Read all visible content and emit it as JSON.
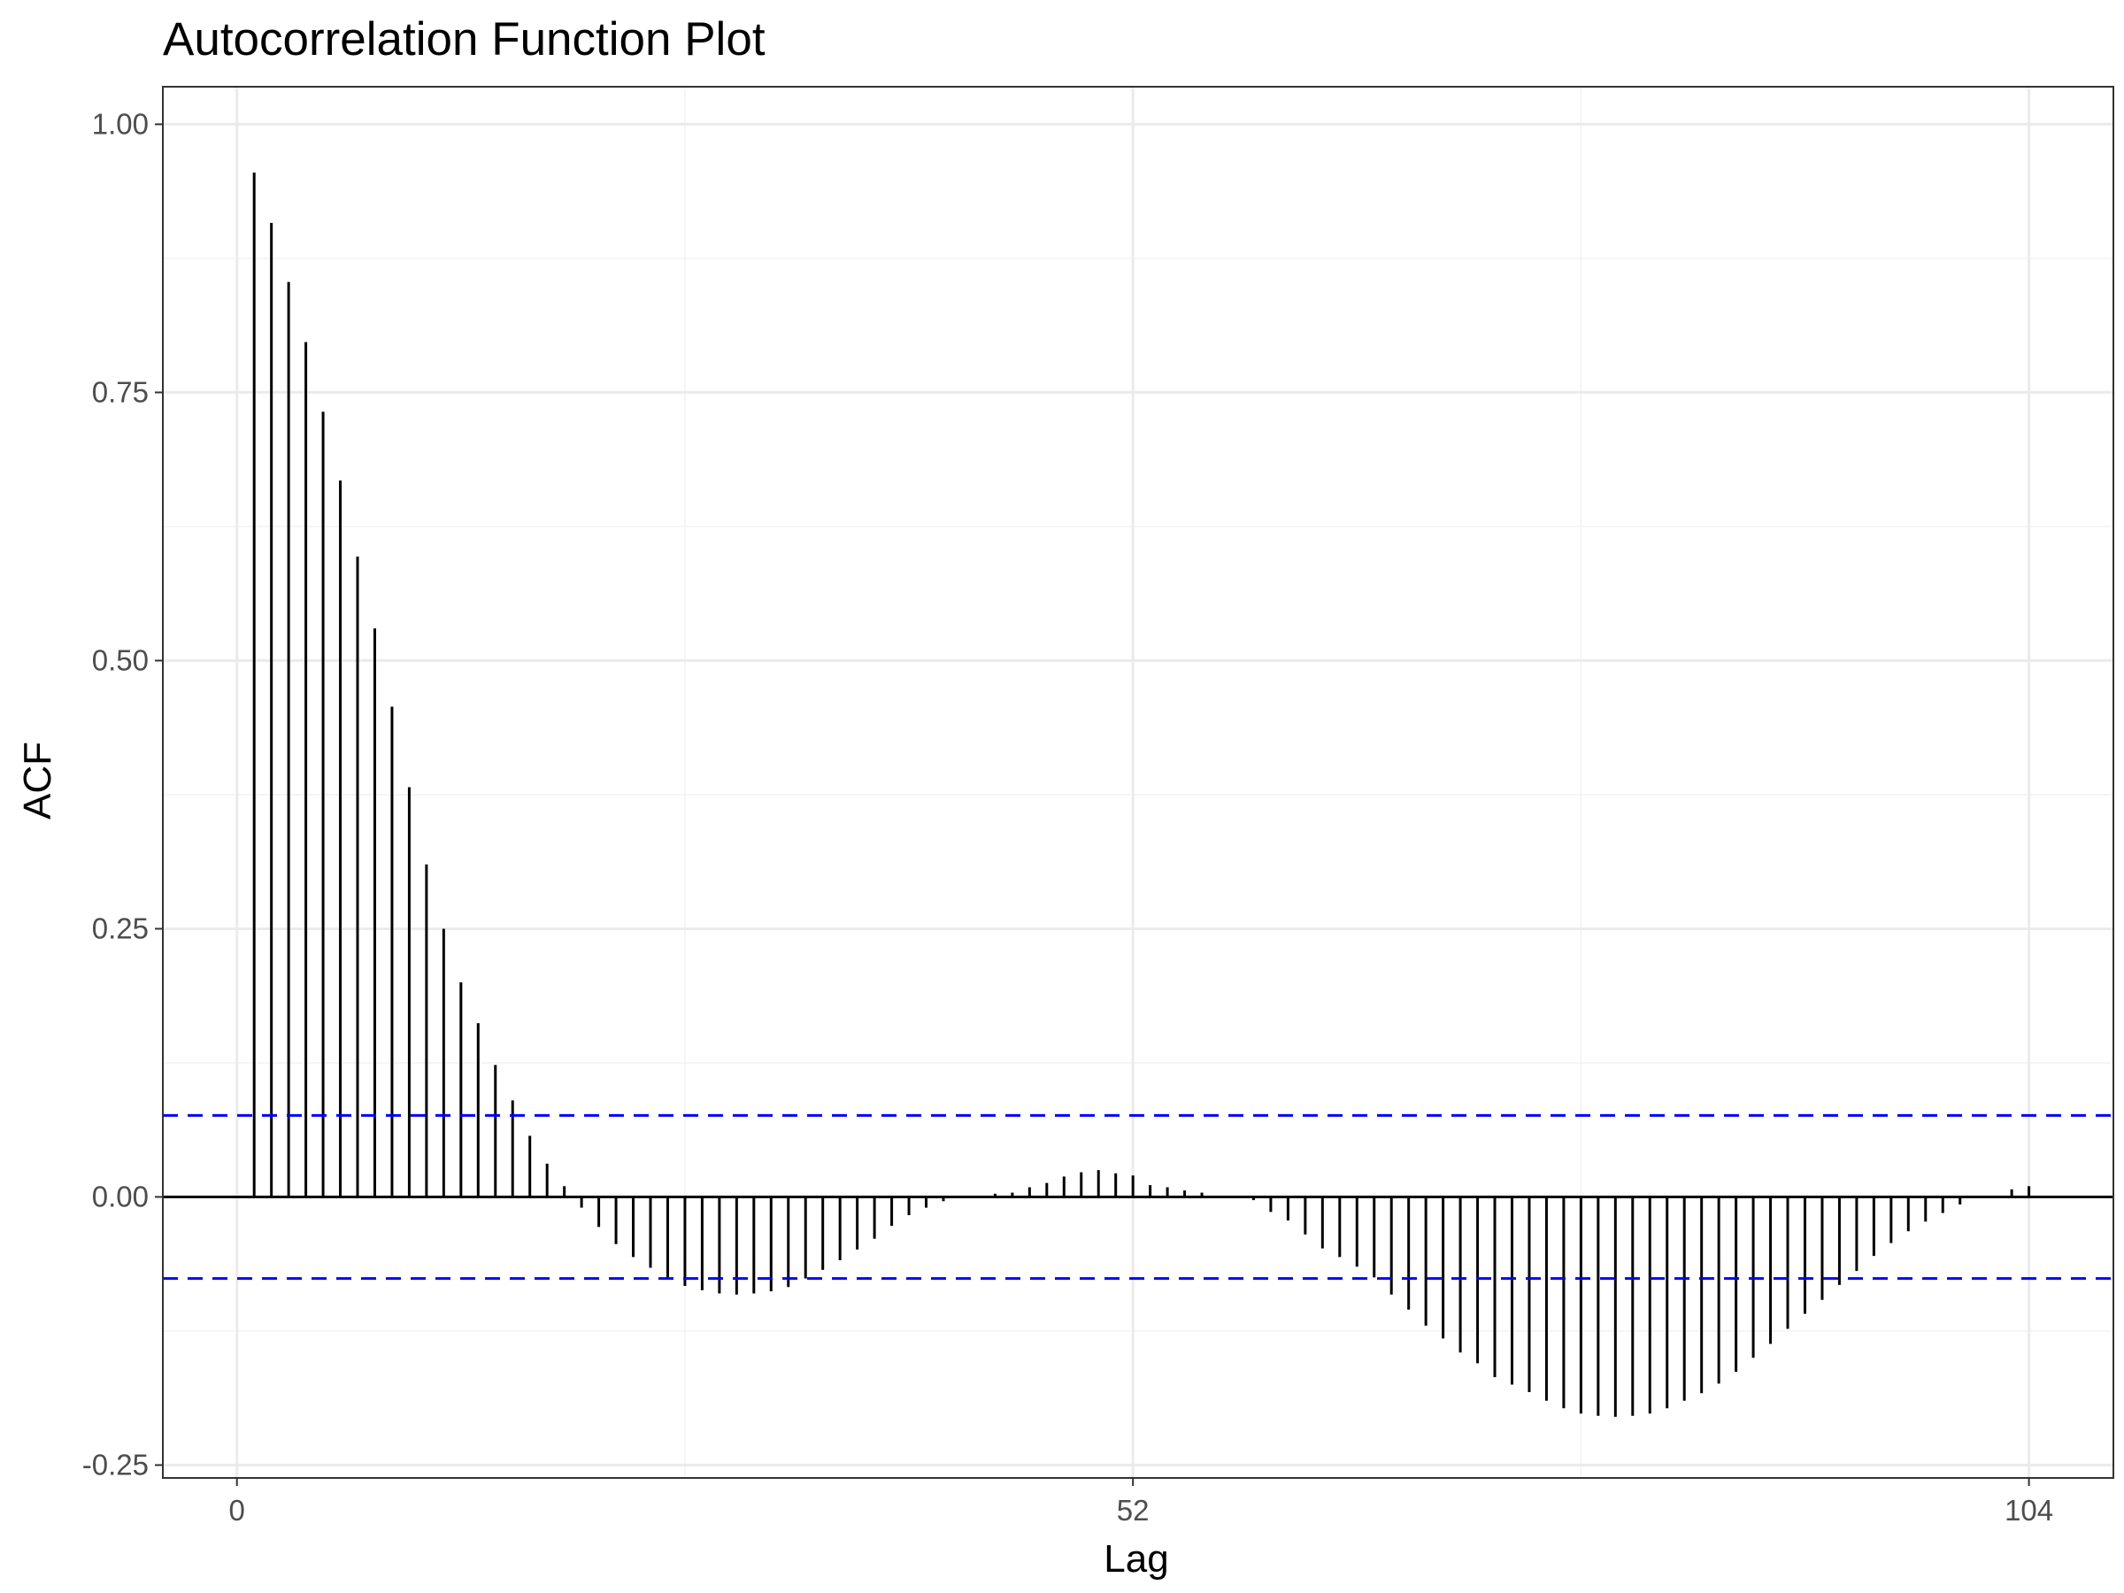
{
  "chart_data": {
    "type": "bar",
    "title": "Autocorrelation Function Plot",
    "xlabel": "Lag",
    "ylabel": "ACF",
    "xlim": [
      -4.3,
      108.9
    ],
    "ylim": [
      -0.262,
      1.035
    ],
    "xticks": [
      0,
      52,
      104
    ],
    "xtick_labels": [
      "0",
      "52",
      "104"
    ],
    "yticks": [
      -0.25,
      0,
      0.25,
      0.5,
      0.75,
      1.0
    ],
    "ytick_labels": [
      "-0.25",
      "0.00",
      "0.25",
      "0.50",
      "0.75",
      "1.00"
    ],
    "grid": true,
    "confidence_band": {
      "upper": 0.076,
      "lower": -0.076
    },
    "lags": [
      1,
      2,
      3,
      4,
      5,
      6,
      7,
      8,
      9,
      10,
      11,
      12,
      13,
      14,
      15,
      16,
      17,
      18,
      19,
      20,
      21,
      22,
      23,
      24,
      25,
      26,
      27,
      28,
      29,
      30,
      31,
      32,
      33,
      34,
      35,
      36,
      37,
      38,
      39,
      40,
      41,
      42,
      43,
      44,
      45,
      46,
      47,
      48,
      49,
      50,
      51,
      52,
      53,
      54,
      55,
      56,
      57,
      58,
      59,
      60,
      61,
      62,
      63,
      64,
      65,
      66,
      67,
      68,
      69,
      70,
      71,
      72,
      73,
      74,
      75,
      76,
      77,
      78,
      79,
      80,
      81,
      82,
      83,
      84,
      85,
      86,
      87,
      88,
      89,
      90,
      91,
      92,
      93,
      94,
      95,
      96,
      97,
      98,
      99,
      100,
      101,
      102,
      103,
      104
    ],
    "values": [
      0.955,
      0.908,
      0.853,
      0.797,
      0.732,
      0.668,
      0.597,
      0.53,
      0.457,
      0.382,
      0.31,
      0.25,
      0.2,
      0.162,
      0.123,
      0.09,
      0.057,
      0.031,
      0.01,
      -0.01,
      -0.028,
      -0.044,
      -0.056,
      -0.066,
      -0.075,
      -0.083,
      -0.087,
      -0.09,
      -0.091,
      -0.09,
      -0.088,
      -0.084,
      -0.076,
      -0.068,
      -0.059,
      -0.049,
      -0.039,
      -0.027,
      -0.017,
      -0.01,
      -0.004,
      0,
      0,
      0.003,
      0.004,
      0.009,
      0.013,
      0.019,
      0.023,
      0.025,
      0.022,
      0.02,
      0.011,
      0.009,
      0.006,
      0.004,
      0,
      0,
      -0.003,
      -0.014,
      -0.022,
      -0.035,
      -0.048,
      -0.056,
      -0.065,
      -0.075,
      -0.091,
      -0.105,
      -0.12,
      -0.132,
      -0.145,
      -0.155,
      -0.168,
      -0.175,
      -0.182,
      -0.19,
      -0.197,
      -0.202,
      -0.204,
      -0.205,
      -0.204,
      -0.202,
      -0.197,
      -0.19,
      -0.183,
      -0.174,
      -0.163,
      -0.15,
      -0.137,
      -0.123,
      -0.109,
      -0.096,
      -0.082,
      -0.069,
      -0.055,
      -0.043,
      -0.032,
      -0.023,
      -0.015,
      -0.007,
      0,
      0,
      0.007,
      0.01
    ]
  }
}
